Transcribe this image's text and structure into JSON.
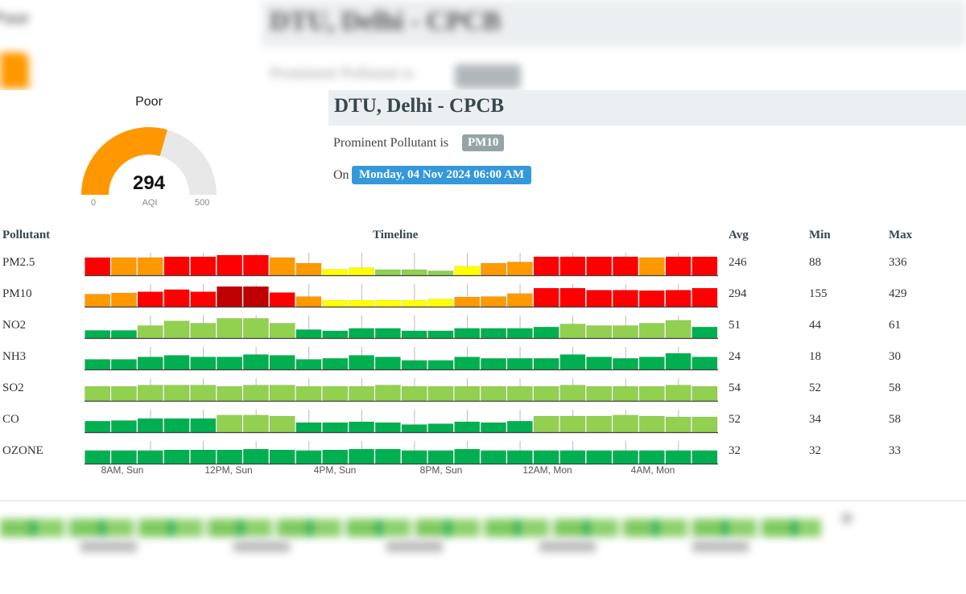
{
  "colors": {
    "good": "#00b050",
    "satisfactory": "#92d050",
    "moderate": "#ffff00",
    "poor": "#ff9900",
    "very_poor": "#ff0000",
    "severe": "#c00000",
    "gauge_fill": "#ff9800",
    "gauge_track": "#e8e8e8"
  },
  "background": {
    "title": "DTU, Delhi - CPCB",
    "subtitle": "Prominent Pollutant is",
    "category": "Poor"
  },
  "gauge": {
    "category": "Poor",
    "value": "294",
    "min_label": "0",
    "max_label": "500",
    "unit": "AQI",
    "aqi_number": 294,
    "aqi_max": 500
  },
  "station": {
    "title": "DTU, Delhi - CPCB",
    "prominent_label": "Prominent Pollutant is",
    "prominent_pollutant": "PM10",
    "on_label": "On",
    "datetime": "Monday, 04 Nov 2024 06:00 AM"
  },
  "table": {
    "headers": {
      "pollutant": "Pollutant",
      "timeline": "Timeline",
      "avg": "Avg",
      "min": "Min",
      "max": "Max"
    },
    "rows": [
      {
        "name": "PM2.5",
        "avg": "246",
        "min": "88",
        "max": "336",
        "levels": [
          "vp",
          "p",
          "p",
          "vp",
          "vp",
          "vp",
          "vp",
          "p",
          "p",
          "m",
          "m",
          "s",
          "s",
          "s",
          "m",
          "p",
          "p",
          "vp",
          "vp",
          "vp",
          "vp",
          "p",
          "vp",
          "vp"
        ],
        "heights": [
          0.88,
          0.88,
          0.88,
          0.92,
          0.92,
          1.0,
          1.0,
          0.88,
          0.6,
          0.3,
          0.38,
          0.28,
          0.28,
          0.22,
          0.45,
          0.6,
          0.66,
          0.92,
          0.92,
          0.92,
          0.92,
          0.88,
          0.92,
          0.92
        ]
      },
      {
        "name": "PM10",
        "avg": "294",
        "min": "155",
        "max": "429",
        "levels": [
          "p",
          "p",
          "vp",
          "vp",
          "vp",
          "sv",
          "sv",
          "vp",
          "p",
          "m",
          "m",
          "m",
          "m",
          "m",
          "p",
          "p",
          "p",
          "vp",
          "vp",
          "vp",
          "vp",
          "vp",
          "vp",
          "vp"
        ],
        "heights": [
          0.62,
          0.68,
          0.74,
          0.85,
          0.74,
          1.0,
          1.0,
          0.7,
          0.5,
          0.32,
          0.32,
          0.32,
          0.32,
          0.38,
          0.48,
          0.5,
          0.65,
          0.92,
          0.92,
          0.82,
          0.82,
          0.8,
          0.82,
          0.92
        ]
      },
      {
        "name": "NO2",
        "avg": "51",
        "min": "44",
        "max": "61",
        "levels": [
          "g",
          "g",
          "s",
          "s",
          "s",
          "s",
          "s",
          "s",
          "g",
          "g",
          "g",
          "g",
          "g",
          "g",
          "g",
          "g",
          "g",
          "g",
          "s",
          "s",
          "s",
          "s",
          "s",
          "g"
        ],
        "heights": [
          0.38,
          0.38,
          0.62,
          0.85,
          0.74,
          0.98,
          0.98,
          0.74,
          0.42,
          0.36,
          0.48,
          0.48,
          0.36,
          0.36,
          0.48,
          0.48,
          0.48,
          0.55,
          0.7,
          0.62,
          0.62,
          0.74,
          0.88,
          0.55
        ]
      },
      {
        "name": "NH3",
        "avg": "24",
        "min": "18",
        "max": "30",
        "levels": [
          "g",
          "g",
          "g",
          "g",
          "g",
          "g",
          "g",
          "g",
          "g",
          "g",
          "g",
          "g",
          "g",
          "g",
          "g",
          "g",
          "g",
          "g",
          "g",
          "g",
          "g",
          "g",
          "g",
          "g"
        ],
        "heights": [
          0.5,
          0.5,
          0.62,
          0.7,
          0.62,
          0.62,
          0.74,
          0.7,
          0.5,
          0.55,
          0.7,
          0.62,
          0.45,
          0.45,
          0.62,
          0.55,
          0.55,
          0.55,
          0.74,
          0.62,
          0.55,
          0.62,
          0.8,
          0.62
        ]
      },
      {
        "name": "SO2",
        "avg": "54",
        "min": "52",
        "max": "58",
        "levels": [
          "s",
          "s",
          "s",
          "s",
          "s",
          "s",
          "s",
          "s",
          "s",
          "s",
          "s",
          "s",
          "s",
          "s",
          "s",
          "s",
          "s",
          "s",
          "s",
          "s",
          "s",
          "s",
          "s",
          "s"
        ],
        "heights": [
          0.72,
          0.72,
          0.78,
          0.78,
          0.78,
          0.72,
          0.78,
          0.78,
          0.72,
          0.72,
          0.72,
          0.78,
          0.72,
          0.72,
          0.72,
          0.72,
          0.72,
          0.72,
          0.78,
          0.72,
          0.72,
          0.72,
          0.78,
          0.72
        ]
      },
      {
        "name": "CO",
        "avg": "52",
        "min": "34",
        "max": "58",
        "levels": [
          "g",
          "g",
          "g",
          "g",
          "g",
          "s",
          "s",
          "s",
          "g",
          "g",
          "g",
          "g",
          "g",
          "g",
          "g",
          "g",
          "g",
          "s",
          "s",
          "s",
          "s",
          "s",
          "s",
          "s"
        ],
        "heights": [
          0.55,
          0.58,
          0.68,
          0.68,
          0.68,
          0.85,
          0.85,
          0.8,
          0.48,
          0.48,
          0.52,
          0.48,
          0.38,
          0.42,
          0.52,
          0.48,
          0.55,
          0.8,
          0.8,
          0.8,
          0.85,
          0.8,
          0.76,
          0.76
        ]
      },
      {
        "name": "OZONE",
        "avg": "32",
        "min": "32",
        "max": "33",
        "levels": [
          "g",
          "g",
          "g",
          "g",
          "g",
          "g",
          "g",
          "g",
          "g",
          "g",
          "g",
          "g",
          "g",
          "g",
          "g",
          "g",
          "g",
          "g",
          "g",
          "g",
          "g",
          "g",
          "g",
          "g"
        ],
        "heights": [
          0.65,
          0.65,
          0.65,
          0.68,
          0.68,
          0.68,
          0.72,
          0.68,
          0.65,
          0.68,
          0.72,
          0.72,
          0.65,
          0.65,
          0.72,
          0.65,
          0.65,
          0.65,
          0.65,
          0.65,
          0.65,
          0.65,
          0.65,
          0.65
        ]
      }
    ],
    "x_ticks": [
      "8AM, Sun",
      "12PM, Sun",
      "4PM, Sun",
      "8PM, Sun",
      "12AM, Mon",
      "4AM, Mon"
    ]
  }
}
